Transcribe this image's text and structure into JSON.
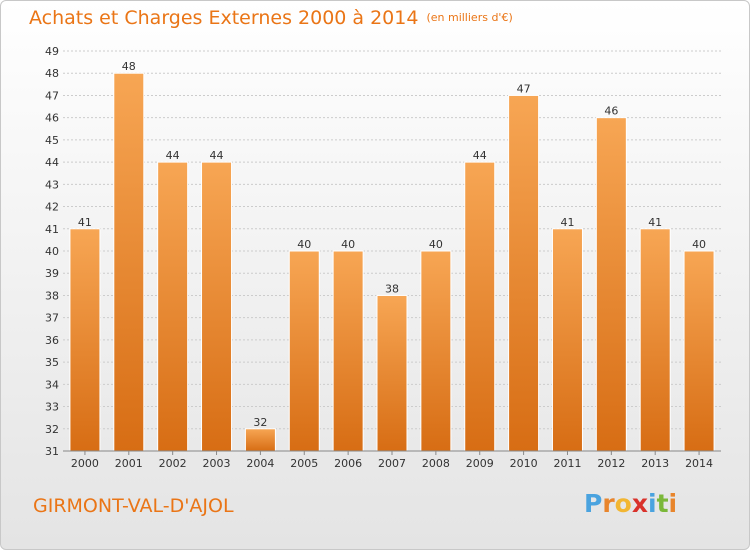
{
  "header": {
    "title": "Achats et Charges Externes 2000 à 2014",
    "unit": "(en milliers d'€)"
  },
  "town": "GIRMONT-VAL-D'AJOL",
  "logo": {
    "text": "Proxiti",
    "colors": [
      "#4aa3df",
      "#e8852c",
      "#f2b632",
      "#d9322b",
      "#4aa3df",
      "#7bb83a",
      "#e8852c"
    ]
  },
  "colors": {
    "accent": "#ea7516",
    "bar_light": "#f7a654",
    "bar_dark": "#d76d14",
    "grid": "#cccccc",
    "axis_text": "#333333"
  },
  "chart_data": {
    "type": "bar",
    "categories": [
      "2000",
      "2001",
      "2002",
      "2003",
      "2004",
      "2005",
      "2006",
      "2007",
      "2008",
      "2009",
      "2010",
      "2011",
      "2012",
      "2013",
      "2014"
    ],
    "values": [
      41,
      48,
      44,
      44,
      32,
      40,
      40,
      38,
      40,
      44,
      47,
      41,
      46,
      41,
      40
    ],
    "data_labels": [
      "41",
      "48",
      "44",
      "44",
      "32",
      "40",
      "40",
      "38",
      "40",
      "44",
      "47",
      "41",
      "46",
      "41",
      "40"
    ],
    "title": "Achats et Charges Externes 2000 à 2014",
    "xlabel": "",
    "ylabel": "",
    "ylim": [
      31,
      49
    ],
    "yticks": [
      "31",
      "32",
      "33",
      "34",
      "35",
      "36",
      "37",
      "38",
      "39",
      "40",
      "41",
      "42",
      "43",
      "44",
      "45",
      "46",
      "47",
      "48",
      "49"
    ],
    "grid": true,
    "legend": "none"
  }
}
